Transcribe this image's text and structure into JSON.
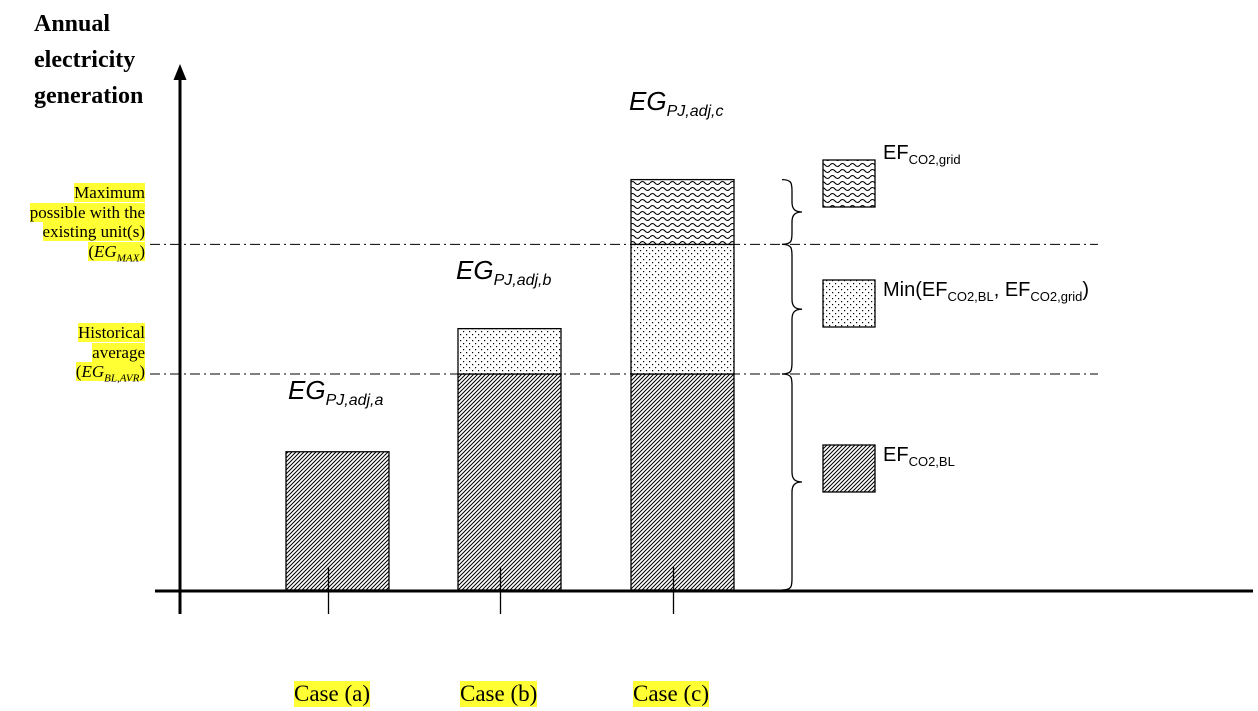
{
  "chart_data": {
    "type": "bar",
    "y_axis_title": [
      "Annual",
      "electricity",
      "generation"
    ],
    "categories": [
      "Case (a)",
      "Case (b)",
      "Case (c)"
    ],
    "reference_lines": [
      {
        "name": "maximum",
        "lines": [
          "Maximum",
          "possible with the",
          "existing unit(s)"
        ],
        "symbol": "EG",
        "subscript": "MAX"
      },
      {
        "name": "historical",
        "lines": [
          "Historical",
          "average"
        ],
        "symbol": "EG",
        "subscript": "BL,AVR"
      }
    ],
    "bar_labels": [
      {
        "base": "EG",
        "sub": "PJ,adj,a"
      },
      {
        "base": "EG",
        "sub": "PJ,adj,b"
      },
      {
        "base": "EG",
        "sub": "PJ,adj,c"
      }
    ],
    "legend": [
      {
        "pattern": "waves",
        "base": "EF",
        "sub": "CO2,grid"
      },
      {
        "pattern": "dots",
        "parts": [
          "Min(EF",
          "CO2,BL",
          ", EF",
          "CO2,grid",
          ")"
        ]
      },
      {
        "pattern": "diagonal",
        "base": "EF",
        "sub": "CO2,BL"
      }
    ],
    "relative_levels": {
      "historical": 1.0,
      "maximum": 1.6
    },
    "bars": [
      {
        "case": "Case (a)",
        "segments": [
          {
            "pattern": "diagonal",
            "value": 0.64
          }
        ]
      },
      {
        "case": "Case (b)",
        "segments": [
          {
            "pattern": "diagonal",
            "value": 1.0
          },
          {
            "pattern": "dots",
            "value": 0.21
          }
        ]
      },
      {
        "case": "Case (c)",
        "segments": [
          {
            "pattern": "diagonal",
            "value": 1.0
          },
          {
            "pattern": "dots",
            "value": 0.6
          },
          {
            "pattern": "waves",
            "value": 0.3
          }
        ]
      }
    ]
  },
  "colors": {
    "highlight": "#ffff33",
    "ink": "#000000"
  }
}
